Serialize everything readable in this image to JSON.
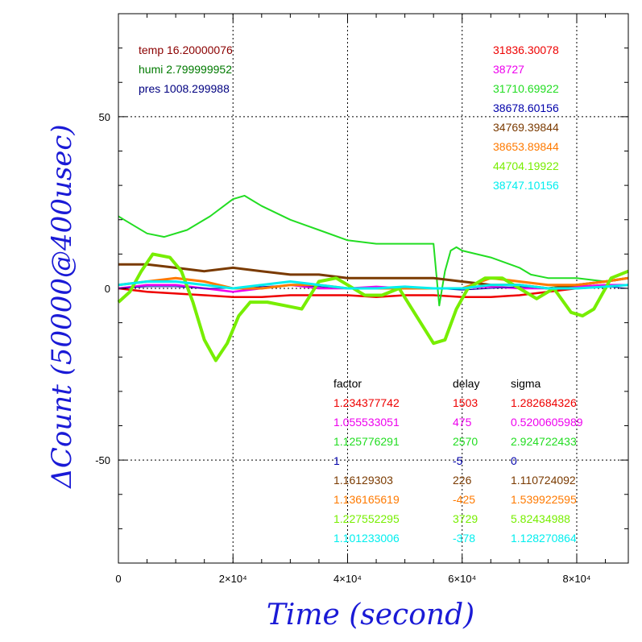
{
  "chart_data": {
    "type": "line",
    "title": "",
    "xlabel": "Time (second)",
    "ylabel": "ΔCount (50000@400usec)",
    "xlim": [
      0,
      89000
    ],
    "ylim": [
      -80,
      80
    ],
    "grid": true,
    "x_ticks": [
      {
        "value": 0,
        "label": "0"
      },
      {
        "value": 20000,
        "label": "2×10⁴"
      },
      {
        "value": 40000,
        "label": "4×10⁴"
      },
      {
        "value": 60000,
        "label": "6×10⁴"
      },
      {
        "value": 80000,
        "label": "8×10⁴"
      }
    ],
    "y_ticks": [
      {
        "value": 50,
        "label": "50"
      },
      {
        "value": 0,
        "label": "0"
      },
      {
        "value": -50,
        "label": "-50"
      }
    ],
    "env": [
      {
        "text": "temp 16.20000076",
        "color": "#8b0000"
      },
      {
        "text": "humi 2.799999952",
        "color": "#007a00"
      },
      {
        "text": "pres 1008.299988",
        "color": "#000080"
      }
    ],
    "table_headers": [
      "factor",
      "delay",
      "sigma"
    ],
    "series": [
      {
        "offset": "31836.30078",
        "factor": "1.234377742",
        "delay": "1503",
        "sigma": "1.282684326",
        "color": "#ee0000",
        "x": [
          0,
          5000,
          10000,
          15000,
          20000,
          25000,
          30000,
          35000,
          40000,
          45000,
          50000,
          55000,
          60000,
          65000,
          70000,
          75000,
          80000,
          85000,
          89000
        ],
        "y": [
          0,
          -1,
          -1.5,
          -2,
          -2.5,
          -2.5,
          -2,
          -2,
          -2,
          -2.5,
          -2,
          -2,
          -2.5,
          -2.5,
          -2,
          -1,
          0,
          0.5,
          1
        ]
      },
      {
        "offset": "38727",
        "factor": "1.055533051",
        "delay": "475",
        "sigma": "0.5200605989",
        "color": "#ee00ee",
        "x": [
          0,
          5000,
          10000,
          15000,
          20000,
          25000,
          30000,
          35000,
          40000,
          45000,
          50000,
          55000,
          60000,
          65000,
          70000,
          75000,
          80000,
          85000,
          89000
        ],
        "y": [
          0,
          1,
          1,
          0,
          -1,
          0,
          1,
          0,
          0,
          0.5,
          0,
          0,
          0,
          0.5,
          0,
          0,
          0.5,
          1,
          1
        ]
      },
      {
        "offset": "31710.69922",
        "factor": "1.125776291",
        "delay": "2570",
        "sigma": "2.924722433",
        "color": "#22dd22",
        "x": [
          0,
          1000,
          3000,
          5000,
          8000,
          12000,
          16000,
          20000,
          22000,
          25000,
          30000,
          35000,
          40000,
          45000,
          50000,
          55000,
          56000,
          57000,
          58000,
          59000,
          60000,
          65000,
          70000,
          72000,
          75000,
          80000,
          85000,
          89000
        ],
        "y": [
          21,
          20,
          18,
          16,
          15,
          17,
          21,
          26,
          27,
          24,
          20,
          17,
          14,
          13,
          13,
          13,
          -5,
          5,
          11,
          12,
          11,
          9,
          6,
          4,
          3,
          3,
          2,
          3
        ]
      },
      {
        "offset": "38678.60156",
        "factor": "1",
        "delay": "-5",
        "sigma": "0",
        "color": "#0000aa",
        "x": [
          0,
          5000,
          10000,
          15000,
          20000,
          25000,
          30000,
          35000,
          40000,
          45000,
          50000,
          55000,
          60000,
          65000,
          70000,
          75000,
          80000,
          85000,
          89000
        ],
        "y": [
          0,
          0.5,
          0.5,
          0,
          0,
          0.5,
          1,
          0.5,
          0,
          0,
          0.5,
          0,
          -0.5,
          0,
          0.5,
          0,
          0,
          0.5,
          0
        ]
      },
      {
        "offset": "34769.39844",
        "factor": "1.16129303",
        "delay": "226",
        "sigma": "1.110724092",
        "color": "#7a3a00",
        "x": [
          0,
          5000,
          10000,
          15000,
          20000,
          25000,
          30000,
          35000,
          40000,
          45000,
          50000,
          55000,
          60000,
          65000,
          70000,
          75000,
          80000,
          85000,
          89000
        ],
        "y": [
          7,
          7,
          6,
          5,
          6,
          5,
          4,
          4,
          3,
          3,
          3,
          3,
          2,
          1,
          1,
          0,
          1,
          2,
          3
        ]
      },
      {
        "offset": "38653.89844",
        "factor": "1.136165619",
        "delay": "-425",
        "sigma": "1.539922595",
        "color": "#ff7a00",
        "x": [
          0,
          5000,
          10000,
          15000,
          20000,
          25000,
          30000,
          35000,
          40000,
          45000,
          50000,
          55000,
          60000,
          65000,
          70000,
          75000,
          80000,
          85000,
          89000
        ],
        "y": [
          1,
          2,
          3,
          2,
          0,
          0,
          1,
          1,
          0,
          0,
          0,
          0,
          0,
          3,
          2,
          1,
          1,
          2,
          3
        ]
      },
      {
        "offset": "44704.19922",
        "factor": "1.227552295",
        "delay": "3729",
        "sigma": "5.82434988",
        "color": "#77ee00",
        "x": [
          0,
          2000,
          4000,
          6000,
          9000,
          11000,
          13000,
          15000,
          17000,
          19000,
          21000,
          23000,
          26000,
          29000,
          32000,
          35000,
          38000,
          40000,
          43000,
          46000,
          49000,
          52000,
          55000,
          57000,
          59000,
          61000,
          64000,
          67000,
          70000,
          73000,
          76000,
          79000,
          81000,
          83000,
          86000,
          89000
        ],
        "y": [
          -4,
          -1,
          5,
          10,
          9,
          5,
          -4,
          -15,
          -21,
          -16,
          -8,
          -4,
          -4,
          -5,
          -6,
          2,
          3,
          1,
          -2,
          -2,
          0,
          -8,
          -16,
          -15,
          -6,
          0,
          3,
          3,
          0,
          -3,
          0,
          -7,
          -8,
          -6,
          3,
          5
        ]
      },
      {
        "offset": "38747.10156",
        "factor": "1.101233006",
        "delay": "-378",
        "sigma": "1.128270864",
        "color": "#00eeee",
        "x": [
          0,
          5000,
          10000,
          15000,
          20000,
          25000,
          30000,
          35000,
          40000,
          45000,
          50000,
          55000,
          60000,
          65000,
          70000,
          75000,
          80000,
          85000,
          89000
        ],
        "y": [
          1,
          2,
          2,
          1,
          0,
          1,
          2,
          1,
          0,
          0,
          0.5,
          0,
          0,
          1,
          1,
          0,
          0,
          0.5,
          1
        ]
      }
    ]
  }
}
